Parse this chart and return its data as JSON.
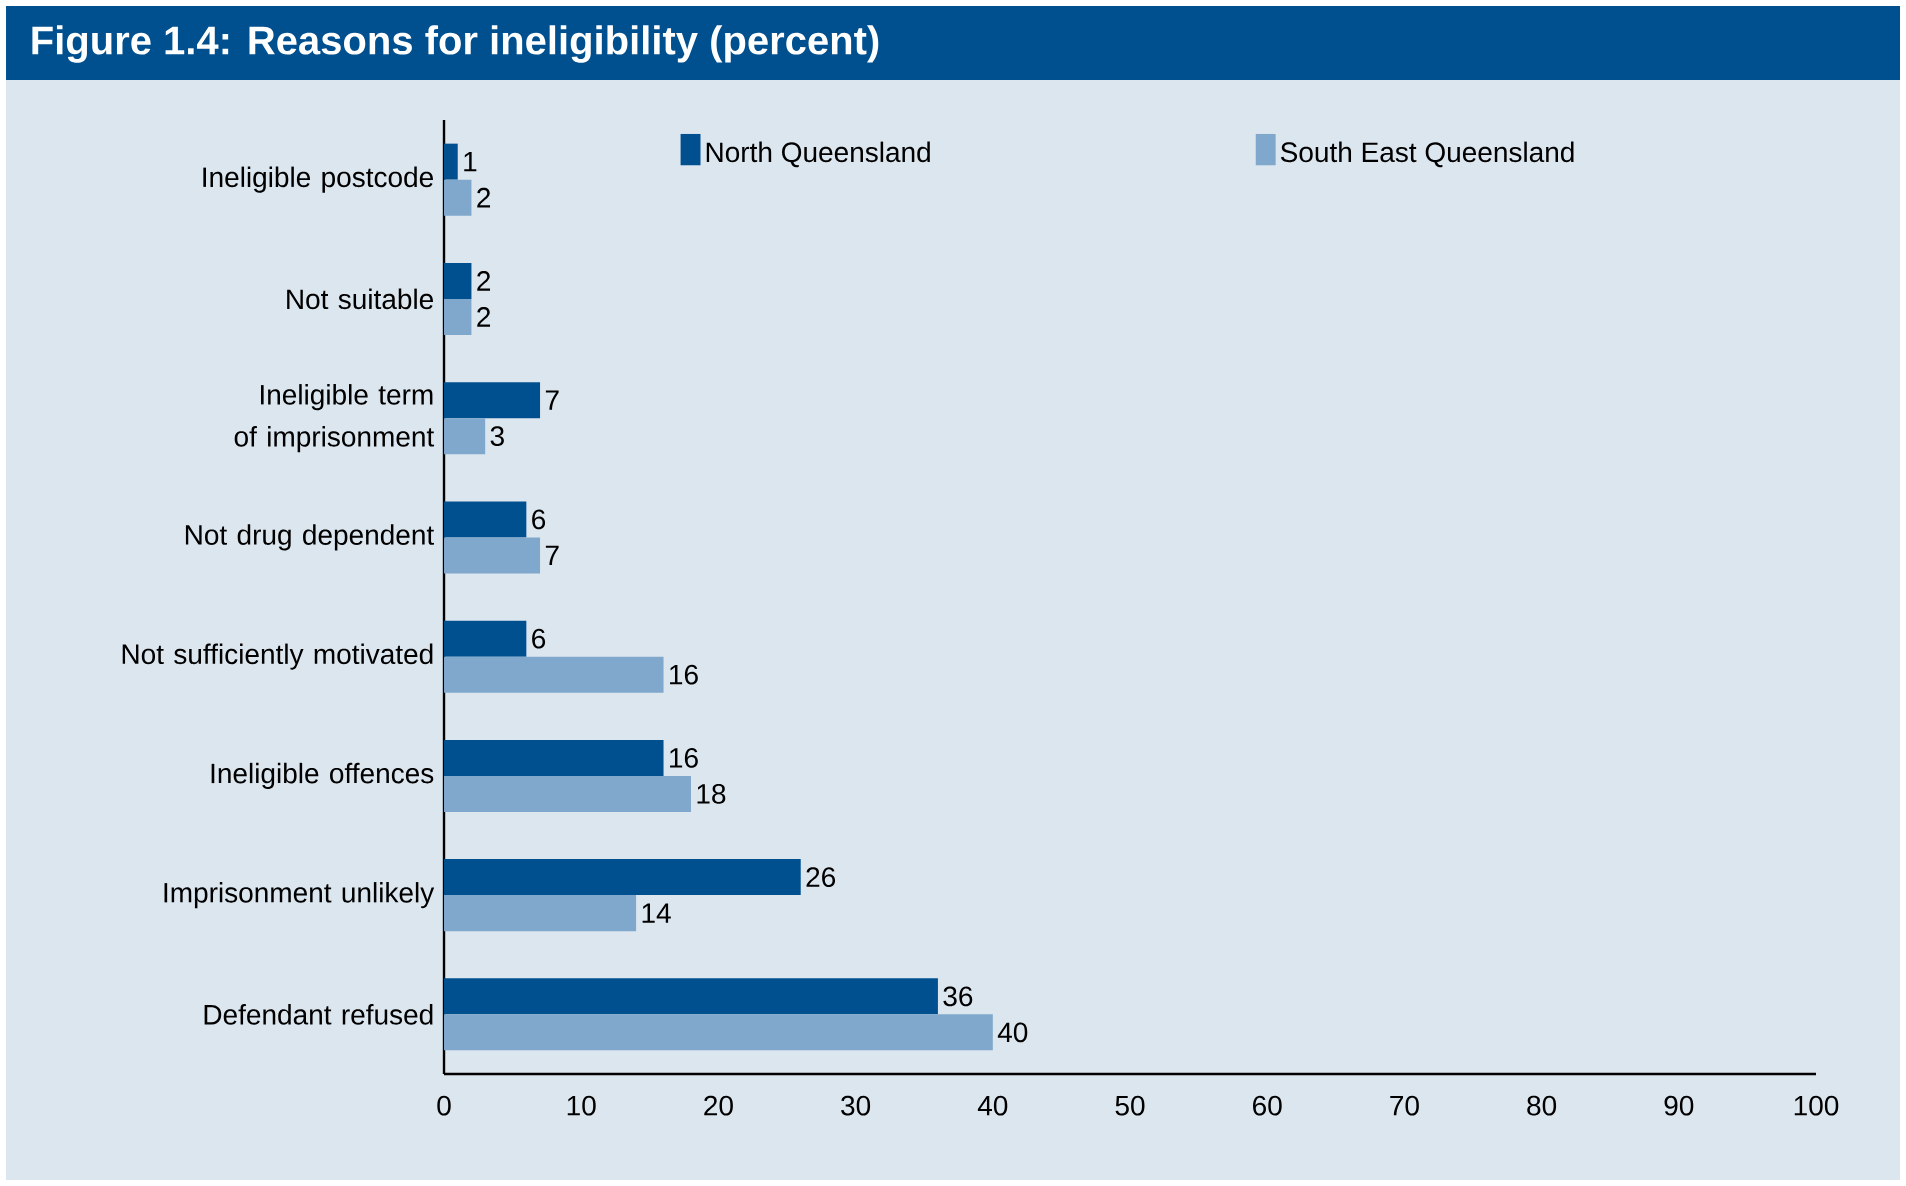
{
  "chart_data": {
    "type": "bar",
    "orientation": "horizontal",
    "title": "Figure 1.4: Reasons for ineligibility (percent)",
    "categories": [
      "Ineligible postcode",
      "Not suitable",
      "Ineligible term of imprisonment",
      "Not drug dependent",
      "Not sufficiently motivated",
      "Ineligible offences",
      "Imprisonment unlikely",
      "Defendant refused"
    ],
    "series": [
      {
        "name": "North Queensland",
        "color": "#00508f",
        "values": [
          1,
          2,
          7,
          6,
          6,
          16,
          26,
          36
        ]
      },
      {
        "name": "South East Queensland",
        "color": "#80a8cc",
        "values": [
          2,
          2,
          3,
          7,
          16,
          18,
          14,
          40
        ]
      }
    ],
    "xlim": [
      0,
      100
    ],
    "xticks": [
      0,
      10,
      20,
      30,
      40,
      50,
      60,
      70,
      80,
      90,
      100
    ],
    "data_labels": true,
    "legend": "top",
    "grid": false
  }
}
